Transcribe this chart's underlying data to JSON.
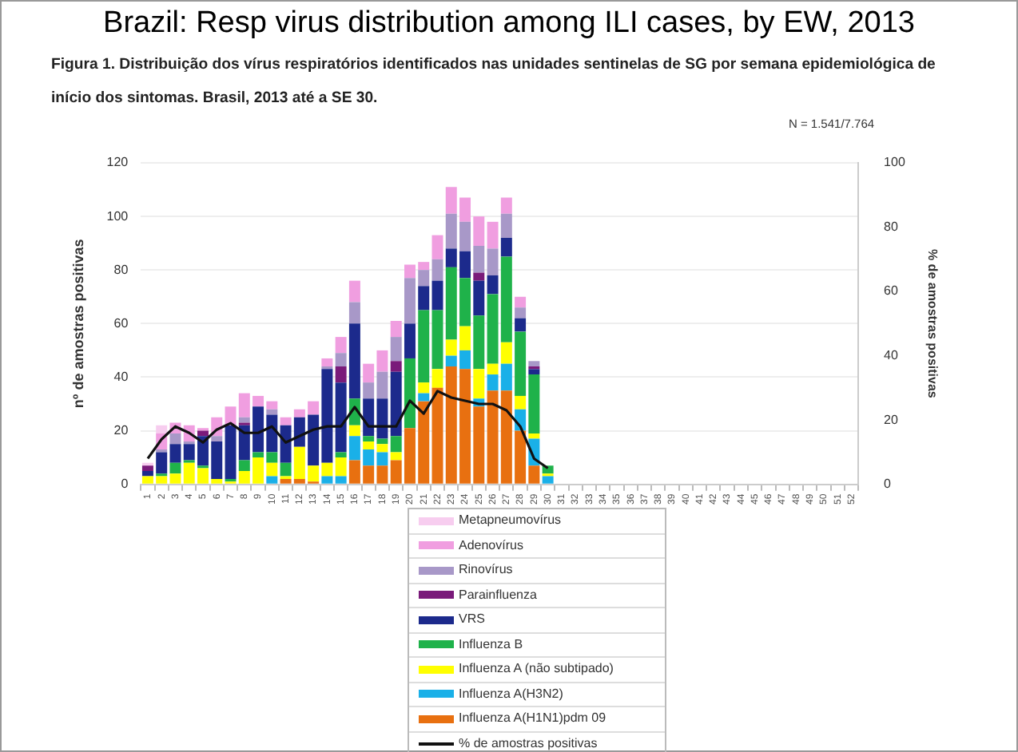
{
  "chart_data": {
    "type": "bar",
    "title": "Brazil: Resp virus distribution among ILI cases, by EW, 2013",
    "subtitle": "Figura 1. Distribuição dos vírus respiratórios identificados nas unidades sentinelas de SG por semana epidemiológica de início dos sintomas. Brasil, 2013 até a SE 30.",
    "annotations": [
      "N = 1.541/7.764"
    ],
    "ylabel": "nº de amostras positivas",
    "y2label": "% de amostras positivas",
    "categories": [
      "1",
      "2",
      "3",
      "4",
      "5",
      "6",
      "7",
      "8",
      "9",
      "10",
      "11",
      "12",
      "13",
      "14",
      "15",
      "16",
      "17",
      "18",
      "19",
      "20",
      "21",
      "22",
      "23",
      "24",
      "25",
      "26",
      "27",
      "28",
      "29",
      "30",
      "31",
      "32",
      "33",
      "34",
      "35",
      "36",
      "37",
      "38",
      "39",
      "40",
      "41",
      "42",
      "43",
      "44",
      "45",
      "46",
      "47",
      "48",
      "49",
      "50",
      "51",
      "52"
    ],
    "stacked": true,
    "ylim": [
      0,
      120
    ],
    "yticks": [
      0,
      20,
      40,
      60,
      80,
      100,
      120
    ],
    "y2lim": [
      0,
      100
    ],
    "y2ticks": [
      0,
      20,
      40,
      60,
      80,
      100
    ],
    "grid": "y",
    "legend": "bottom",
    "series": [
      {
        "name": "Influenza A(H1N1)pdm 09",
        "color": "#e87010",
        "values": [
          0,
          0,
          0,
          0,
          0,
          0,
          0,
          0,
          0,
          0,
          2,
          2,
          1,
          0,
          0,
          9,
          7,
          7,
          9,
          21,
          31,
          36,
          44,
          43,
          29,
          35,
          35,
          20,
          7,
          0,
          null,
          null,
          null,
          null,
          null,
          null,
          null,
          null,
          null,
          null,
          null,
          null,
          null,
          null,
          null,
          null,
          null,
          null,
          null,
          null,
          null,
          null
        ]
      },
      {
        "name": "Influenza A(H3N2)",
        "color": "#1ab0e8",
        "values": [
          0,
          0,
          0,
          0,
          0,
          0,
          0,
          0,
          0,
          3,
          0,
          0,
          0,
          3,
          3,
          9,
          6,
          5,
          0,
          0,
          3,
          0,
          4,
          7,
          3,
          6,
          10,
          8,
          10,
          3,
          null,
          null,
          null,
          null,
          null,
          null,
          null,
          null,
          null,
          null,
          null,
          null,
          null,
          null,
          null,
          null,
          null,
          null,
          null,
          null,
          null,
          null
        ]
      },
      {
        "name": "Influenza A (não subtipado)",
        "color": "#ffff00",
        "values": [
          3,
          3,
          4,
          8,
          6,
          2,
          1,
          5,
          10,
          5,
          1,
          12,
          6,
          5,
          7,
          4,
          3,
          3,
          3,
          0,
          4,
          7,
          6,
          9,
          11,
          4,
          8,
          5,
          2,
          1,
          null,
          null,
          null,
          null,
          null,
          null,
          null,
          null,
          null,
          null,
          null,
          null,
          null,
          null,
          null,
          null,
          null,
          null,
          null,
          null,
          null,
          null
        ]
      },
      {
        "name": "Influenza B",
        "color": "#1fb24a",
        "values": [
          0,
          1,
          4,
          1,
          1,
          0,
          1,
          4,
          2,
          4,
          5,
          0,
          0,
          0,
          2,
          10,
          2,
          2,
          6,
          26,
          27,
          22,
          27,
          18,
          20,
          26,
          32,
          24,
          22,
          3,
          null,
          null,
          null,
          null,
          null,
          null,
          null,
          null,
          null,
          null,
          null,
          null,
          null,
          null,
          null,
          null,
          null,
          null,
          null,
          null,
          null,
          null
        ]
      },
      {
        "name": "VRS",
        "color": "#1c2a8c",
        "values": [
          2,
          8,
          7,
          6,
          11,
          14,
          20,
          13,
          17,
          14,
          14,
          11,
          19,
          35,
          26,
          28,
          14,
          15,
          24,
          13,
          9,
          11,
          7,
          10,
          13,
          7,
          7,
          5,
          2,
          0,
          null,
          null,
          null,
          null,
          null,
          null,
          null,
          null,
          null,
          null,
          null,
          null,
          null,
          null,
          null,
          null,
          null,
          null,
          null,
          null,
          null,
          null
        ]
      },
      {
        "name": "Parainfluenza",
        "color": "#7a1a7a",
        "values": [
          2,
          0,
          0,
          0,
          2,
          0,
          0,
          1,
          0,
          0,
          0,
          0,
          0,
          0,
          6,
          0,
          0,
          0,
          4,
          0,
          0,
          0,
          0,
          0,
          3,
          0,
          0,
          0,
          1,
          0,
          null,
          null,
          null,
          null,
          null,
          null,
          null,
          null,
          null,
          null,
          null,
          null,
          null,
          null,
          null,
          null,
          null,
          null,
          null,
          null,
          null,
          null
        ]
      },
      {
        "name": "Rinovírus",
        "color": "#a898c8",
        "values": [
          0,
          1,
          4,
          1,
          0,
          2,
          0,
          2,
          0,
          2,
          0,
          0,
          0,
          1,
          5,
          8,
          6,
          10,
          9,
          17,
          6,
          8,
          13,
          11,
          10,
          10,
          9,
          4,
          2,
          0,
          null,
          null,
          null,
          null,
          null,
          null,
          null,
          null,
          null,
          null,
          null,
          null,
          null,
          null,
          null,
          null,
          null,
          null,
          null,
          null,
          null,
          null
        ]
      },
      {
        "name": "Adenovírus",
        "color": "#f09ee0",
        "values": [
          0,
          6,
          4,
          6,
          1,
          7,
          7,
          9,
          4,
          3,
          3,
          3,
          5,
          3,
          6,
          8,
          7,
          8,
          6,
          5,
          3,
          9,
          10,
          9,
          11,
          10,
          6,
          4,
          0,
          0,
          null,
          null,
          null,
          null,
          null,
          null,
          null,
          null,
          null,
          null,
          null,
          null,
          null,
          null,
          null,
          null,
          null,
          null,
          null,
          null,
          null,
          null
        ]
      },
      {
        "name": "Metapneumovírus",
        "color": "#f7cdef",
        "values": [
          1,
          3,
          0,
          0,
          0,
          0,
          0,
          0,
          0,
          0,
          0,
          0,
          0,
          0,
          0,
          0,
          0,
          0,
          0,
          0,
          0,
          0,
          0,
          0,
          0,
          0,
          0,
          0,
          0,
          0,
          null,
          null,
          null,
          null,
          null,
          null,
          null,
          null,
          null,
          null,
          null,
          null,
          null,
          null,
          null,
          null,
          null,
          null,
          null,
          null,
          null,
          null
        ]
      },
      {
        "name": "% de amostras positivas",
        "type": "line",
        "axis": "y2",
        "color": "#111111",
        "values": [
          8,
          14,
          18,
          16,
          13,
          17,
          19,
          16,
          16,
          18,
          13,
          15,
          17,
          18,
          18,
          24,
          18,
          18,
          18,
          26,
          22,
          29,
          27,
          26,
          25,
          25,
          23,
          18,
          8,
          5,
          null,
          null,
          null,
          null,
          null,
          null,
          null,
          null,
          null,
          null,
          null,
          null,
          null,
          null,
          null,
          null,
          null,
          null,
          null,
          null,
          null,
          null
        ]
      }
    ]
  }
}
